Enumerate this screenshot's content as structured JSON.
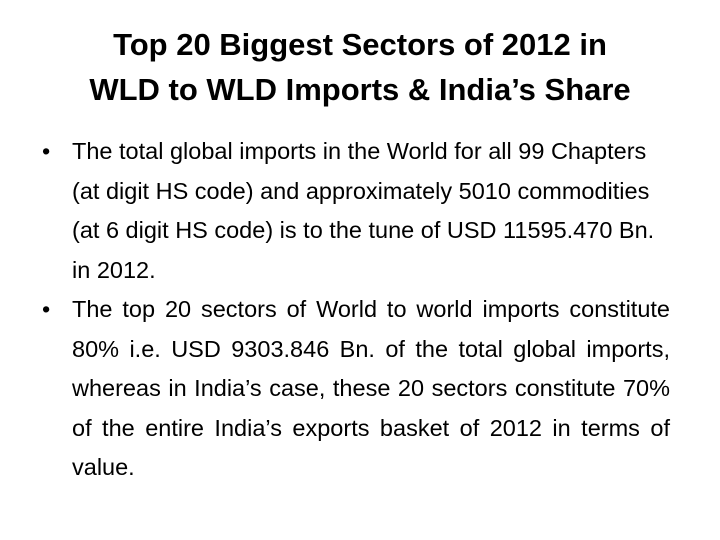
{
  "slide": {
    "title": [
      "Top 20 Biggest Sectors of 2012 in",
      "WLD to WLD Imports & India’s Share"
    ],
    "bullets": [
      "The total global imports in the World for all 99 Chapters (at digit HS code) and approximately 5010 commodities (at 6 digit HS code) is to the tune of USD 11595.470 Bn. in 2012.",
      "The top 20 sectors of World to world imports constitute 80% i.e. USD 9303.846 Bn. of the total global imports, whereas in India’s case, these 20 sectors constitute 70% of the entire India’s exports basket of 2012 in terms of value."
    ]
  }
}
